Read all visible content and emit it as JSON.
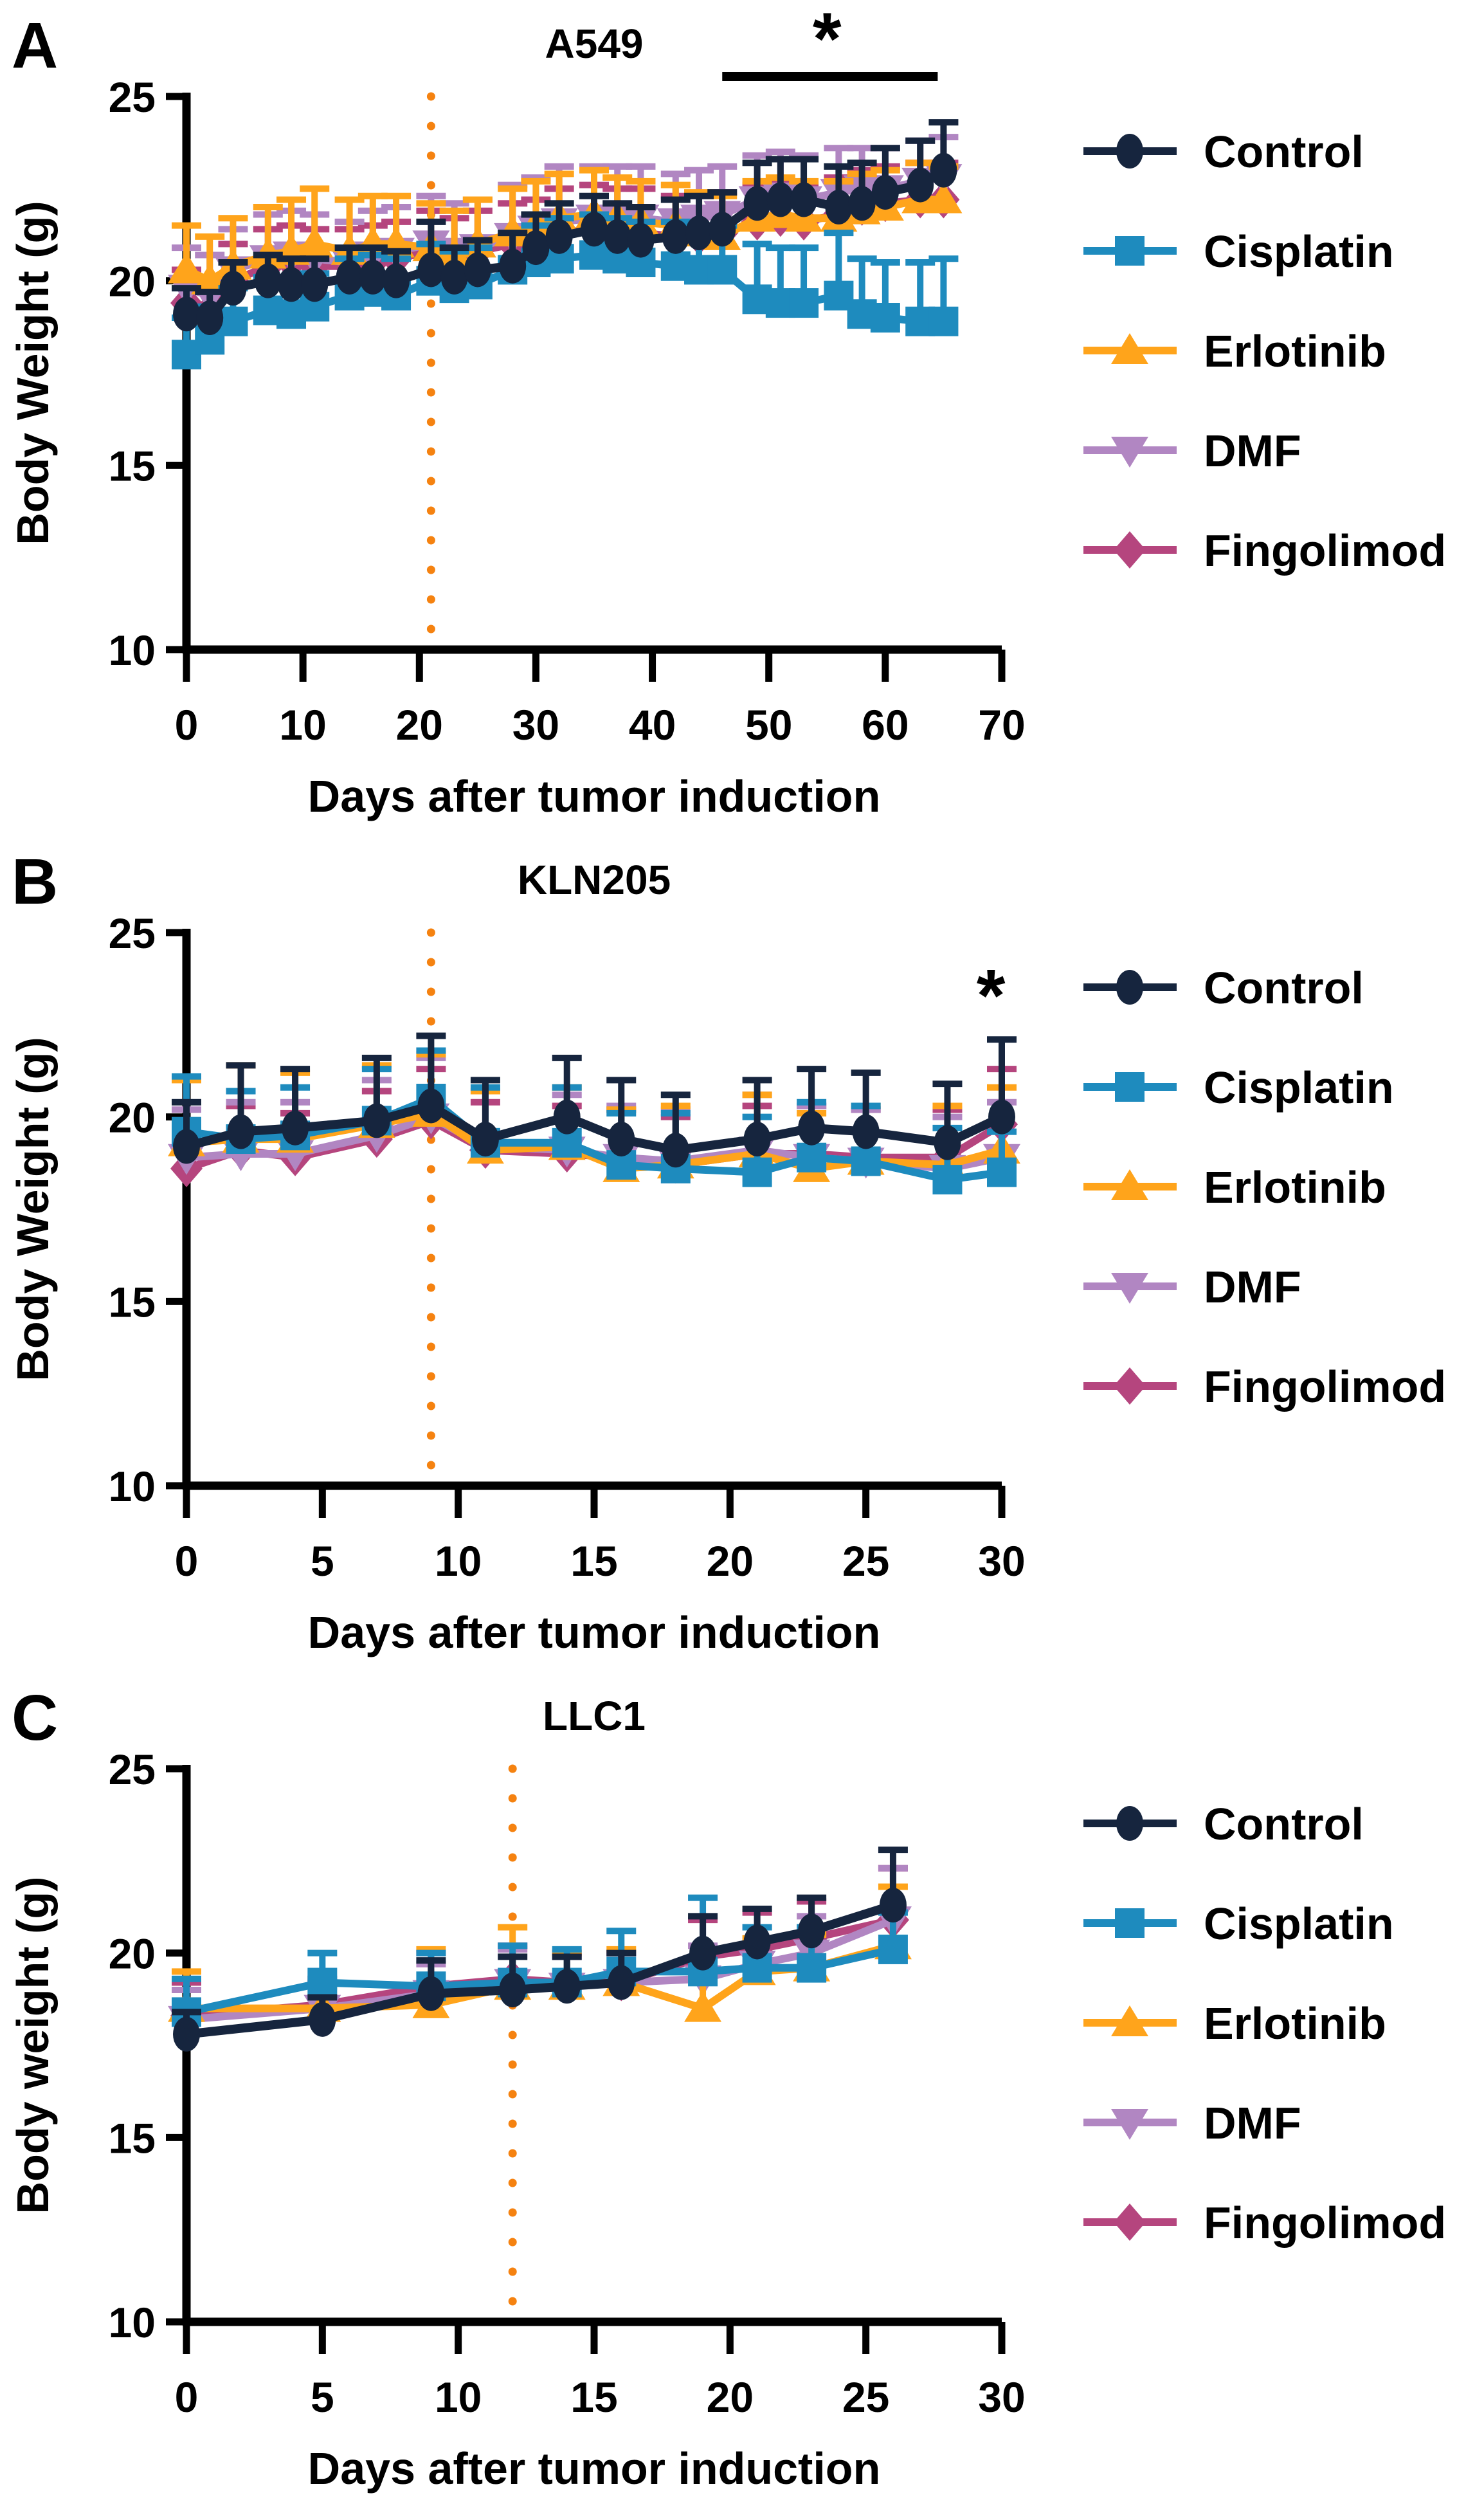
{
  "figure": {
    "background": "#ffffff"
  },
  "colors": {
    "control": "#16253e",
    "cisplatin": "#1e8bbe",
    "erlotinib": "#ffa41b",
    "dmf": "#b186c2",
    "fingolimod": "#b5457e",
    "treatment_line": "#f58210",
    "axis": "#000000",
    "sig_bar": "#000000"
  },
  "legend": {
    "position": "right",
    "entries": [
      {
        "label": "Control",
        "key": "control",
        "marker": "circle"
      },
      {
        "label": "Cisplatin",
        "key": "cisplatin",
        "marker": "square"
      },
      {
        "label": "Erlotinib",
        "key": "erlotinib",
        "marker": "triangle-up"
      },
      {
        "label": "DMF",
        "key": "dmf",
        "marker": "triangle-down"
      },
      {
        "label": "Fingolimod",
        "key": "fingolimod",
        "marker": "diamond"
      }
    ]
  },
  "chart_data": [
    {
      "type": "line",
      "panel_letter": "A",
      "title": "A549",
      "xlabel": "Days after tumor induction",
      "ylabel": "Body Weight (g)",
      "xlim": [
        0,
        70
      ],
      "xticks": [
        0,
        10,
        20,
        30,
        40,
        50,
        60,
        70
      ],
      "ylim": [
        10,
        25
      ],
      "yticks": [
        10,
        15,
        20,
        25
      ],
      "grid": false,
      "treatment_day_line": 21,
      "significance": {
        "type": "bar-asterisk",
        "from_day": 46,
        "to_day": 64.5,
        "asterisk_day": 55,
        "label": "*",
        "color_key": "cisplatin"
      },
      "x": [
        0,
        2,
        4,
        7,
        9,
        11,
        14,
        16,
        18,
        21,
        23,
        25,
        28,
        30,
        32,
        35,
        37,
        39,
        42,
        44,
        46,
        49,
        51,
        53,
        56,
        58,
        60,
        63,
        65
      ],
      "series": [
        {
          "name": "Control",
          "key": "control",
          "marker": "circle",
          "mean": [
            19.1,
            19.0,
            19.8,
            20.0,
            19.9,
            19.9,
            20.1,
            20.1,
            20.0,
            20.3,
            20.1,
            20.3,
            20.4,
            20.9,
            21.2,
            21.4,
            21.2,
            21.1,
            21.2,
            21.3,
            21.4,
            22.1,
            22.2,
            22.2,
            22.0,
            22.1,
            22.4,
            22.6,
            23.0
          ],
          "sd_upper": [
            0.7,
            0.7,
            0.7,
            0.7,
            0.7,
            0.7,
            0.8,
            0.8,
            0.8,
            1.3,
            0.8,
            0.8,
            0.9,
            0.9,
            0.9,
            0.9,
            0.9,
            0.9,
            1.0,
            1.0,
            1.0,
            1.1,
            1.1,
            1.1,
            1.1,
            1.1,
            1.2,
            1.2,
            1.3
          ]
        },
        {
          "name": "Cisplatin",
          "key": "cisplatin",
          "marker": "square",
          "mean": [
            18.0,
            18.4,
            18.9,
            19.2,
            19.1,
            19.3,
            19.6,
            19.7,
            19.6,
            20.0,
            19.8,
            19.9,
            20.3,
            20.5,
            20.6,
            20.7,
            20.6,
            20.5,
            20.4,
            20.3,
            20.3,
            19.5,
            19.4,
            19.4,
            19.6,
            19.1,
            19.0,
            18.9,
            18.9
          ],
          "sd_upper": [
            1.0,
            0.9,
            0.9,
            0.9,
            0.9,
            0.9,
            1.0,
            1.0,
            1.0,
            1.0,
            1.0,
            1.0,
            1.0,
            1.0,
            1.1,
            1.1,
            1.1,
            1.1,
            1.2,
            1.2,
            1.2,
            1.5,
            1.5,
            1.5,
            1.7,
            1.5,
            1.5,
            1.6,
            1.7
          ]
        },
        {
          "name": "Erlotinib",
          "key": "erlotinib",
          "marker": "triangle-up",
          "mean": [
            20.3,
            20.0,
            20.4,
            20.7,
            20.8,
            21.0,
            20.8,
            21.0,
            21.0,
            20.9,
            20.7,
            21.0,
            21.3,
            21.5,
            21.7,
            21.8,
            21.7,
            21.6,
            21.5,
            21.3,
            21.2,
            21.7,
            21.8,
            21.7,
            21.7,
            21.9,
            22.0,
            22.2,
            22.2
          ],
          "sd_upper": [
            1.2,
            1.2,
            1.3,
            1.3,
            1.4,
            1.5,
            1.4,
            1.3,
            1.3,
            1.2,
            1.2,
            1.2,
            1.2,
            1.2,
            1.2,
            1.2,
            1.1,
            1.1,
            1.1,
            1.1,
            1.1,
            1.0,
            1.0,
            1.0,
            1.0,
            1.0,
            1.0,
            1.0,
            0.9
          ]
        },
        {
          "name": "DMF",
          "key": "dmf",
          "marker": "triangle-down",
          "mean": [
            19.8,
            19.6,
            20.3,
            20.6,
            20.7,
            20.6,
            20.5,
            20.7,
            20.8,
            21.0,
            20.8,
            20.9,
            21.2,
            21.4,
            21.6,
            21.7,
            21.7,
            21.7,
            21.6,
            21.7,
            21.8,
            22.2,
            22.3,
            22.2,
            22.4,
            22.5,
            22.5,
            22.7,
            22.8
          ],
          "sd_upper": [
            1.1,
            1.1,
            1.1,
            1.2,
            1.2,
            1.2,
            1.1,
            1.2,
            1.2,
            1.3,
            1.3,
            1.3,
            1.4,
            1.4,
            1.5,
            1.4,
            1.4,
            1.4,
            1.3,
            1.3,
            1.3,
            1.2,
            1.2,
            1.2,
            1.2,
            1.1,
            1.1,
            1.1,
            1.1
          ]
        },
        {
          "name": "Fingolimod",
          "key": "fingolimod",
          "marker": "diamond",
          "mean": [
            19.4,
            19.2,
            20.0,
            20.4,
            20.5,
            20.4,
            20.4,
            20.5,
            20.6,
            20.8,
            20.6,
            20.8,
            21.0,
            21.1,
            21.3,
            21.4,
            21.3,
            21.3,
            21.2,
            21.2,
            21.3,
            21.6,
            21.7,
            21.6,
            21.8,
            22.0,
            22.1,
            22.2,
            22.2
          ],
          "sd_upper": [
            0.9,
            0.9,
            1.0,
            1.0,
            1.0,
            1.0,
            1.0,
            1.0,
            1.0,
            1.1,
            1.1,
            1.1,
            1.1,
            1.1,
            1.2,
            1.2,
            1.2,
            1.2,
            1.1,
            1.1,
            1.1,
            1.0,
            1.0,
            1.0,
            1.0,
            1.0,
            1.0,
            1.0,
            1.0
          ]
        }
      ]
    },
    {
      "type": "line",
      "panel_letter": "B",
      "title": "KLN205",
      "xlabel": "Days after tumor induction",
      "ylabel": "Body Weight (g)",
      "xlim": [
        0,
        30
      ],
      "xticks": [
        0,
        5,
        10,
        15,
        20,
        25,
        30
      ],
      "ylim": [
        10,
        25
      ],
      "yticks": [
        10,
        15,
        20,
        25
      ],
      "grid": false,
      "treatment_day_line": 9,
      "significance": {
        "type": "asterisk",
        "day": 29.6,
        "value": 22.6,
        "label": "*",
        "color_key": "cisplatin"
      },
      "x": [
        0,
        2,
        4,
        7,
        9,
        11,
        14,
        16,
        18,
        21,
        23,
        25,
        28,
        30
      ],
      "series": [
        {
          "name": "Control",
          "key": "control",
          "marker": "circle",
          "mean": [
            19.2,
            19.6,
            19.7,
            19.9,
            20.3,
            19.4,
            20.0,
            19.4,
            19.1,
            19.4,
            19.7,
            19.6,
            19.3,
            20.0
          ],
          "sd_upper": [
            1.2,
            1.8,
            1.6,
            1.7,
            1.9,
            1.6,
            1.6,
            1.6,
            1.5,
            1.6,
            1.6,
            1.6,
            1.6,
            2.1
          ]
        },
        {
          "name": "Cisplatin",
          "key": "cisplatin",
          "marker": "square",
          "mean": [
            19.6,
            19.4,
            19.5,
            19.9,
            20.5,
            19.3,
            19.3,
            18.7,
            18.6,
            18.5,
            18.9,
            18.8,
            18.3,
            18.5
          ],
          "sd_upper": [
            1.5,
            1.3,
            1.3,
            1.4,
            1.3,
            1.5,
            1.5,
            1.4,
            1.5,
            1.5,
            1.5,
            1.5,
            1.4,
            1.1
          ]
        },
        {
          "name": "Erlotinib",
          "key": "erlotinib",
          "marker": "triangle-up",
          "mean": [
            19.3,
            19.4,
            19.4,
            19.8,
            20.1,
            19.1,
            19.2,
            18.6,
            18.7,
            19.0,
            18.6,
            18.8,
            18.7,
            19.1
          ],
          "sd_upper": [
            1.7,
            2.0,
            1.8,
            1.6,
            1.6,
            1.6,
            1.6,
            1.6,
            1.6,
            1.6,
            1.5,
            1.5,
            1.6,
            1.7
          ]
        },
        {
          "name": "DMF",
          "key": "dmf",
          "marker": "triangle-down",
          "mean": [
            18.9,
            19.0,
            19.0,
            19.5,
            20.0,
            19.2,
            19.1,
            18.9,
            18.8,
            19.1,
            18.9,
            18.8,
            18.6,
            18.9
          ],
          "sd_upper": [
            1.3,
            1.4,
            1.4,
            1.5,
            1.6,
            1.5,
            1.5,
            1.4,
            1.4,
            1.5,
            1.4,
            1.4,
            1.4,
            1.5
          ]
        },
        {
          "name": "Fingolimod",
          "key": "fingolimod",
          "marker": "diamond",
          "mean": [
            18.6,
            19.1,
            18.9,
            19.4,
            19.9,
            19.1,
            19.0,
            18.9,
            18.7,
            19.0,
            19.0,
            18.9,
            18.9,
            19.8
          ],
          "sd_upper": [
            1.1,
            1.2,
            1.2,
            1.3,
            1.4,
            1.3,
            1.3,
            1.3,
            1.3,
            1.3,
            1.3,
            1.3,
            1.3,
            1.5
          ]
        }
      ]
    },
    {
      "type": "line",
      "panel_letter": "C",
      "title": "LLC1",
      "xlabel": "Days after tumor induction",
      "ylabel": "Body weight (g)",
      "xlim": [
        0,
        30
      ],
      "xticks": [
        0,
        5,
        10,
        15,
        20,
        25,
        30
      ],
      "ylim": [
        10,
        25
      ],
      "yticks": [
        10,
        15,
        20,
        25
      ],
      "grid": false,
      "treatment_day_line": 12,
      "significance": null,
      "x": [
        0,
        5,
        9,
        12,
        14,
        16,
        19,
        21,
        23,
        26
      ],
      "series": [
        {
          "name": "Control",
          "key": "control",
          "marker": "circle",
          "mean": [
            17.8,
            18.2,
            18.9,
            19.0,
            19.1,
            19.2,
            20.0,
            20.3,
            20.6,
            21.3
          ],
          "sd_upper": [
            0.6,
            0.6,
            0.9,
            0.9,
            0.8,
            0.8,
            1.0,
            0.9,
            0.9,
            1.5
          ]
        },
        {
          "name": "Cisplatin",
          "key": "cisplatin",
          "marker": "square",
          "mean": [
            18.4,
            19.2,
            19.1,
            19.2,
            19.2,
            19.5,
            19.5,
            19.6,
            19.6,
            20.1
          ],
          "sd_upper": [
            0.9,
            0.8,
            0.9,
            1.0,
            0.9,
            1.1,
            2.0,
            1.1,
            1.1,
            1.0
          ]
        },
        {
          "name": "Erlotinib",
          "key": "erlotinib",
          "marker": "triangle-up",
          "mean": [
            18.5,
            18.5,
            18.6,
            19.1,
            19.1,
            19.2,
            18.5,
            19.5,
            19.6,
            20.2
          ],
          "sd_upper": [
            1.0,
            0.6,
            1.5,
            1.6,
            0.9,
            0.9,
            0.9,
            0.9,
            0.9,
            1.6
          ]
        },
        {
          "name": "DMF",
          "key": "dmf",
          "marker": "triangle-down",
          "mean": [
            18.2,
            18.5,
            18.9,
            19.2,
            19.1,
            19.2,
            19.3,
            19.7,
            20.0,
            20.9
          ],
          "sd_upper": [
            0.8,
            0.7,
            0.8,
            0.9,
            0.8,
            0.8,
            0.9,
            1.0,
            1.0,
            1.4
          ]
        },
        {
          "name": "Fingolimod",
          "key": "fingolimod",
          "marker": "diamond",
          "mean": [
            18.3,
            18.6,
            19.1,
            19.3,
            19.2,
            19.2,
            19.9,
            20.1,
            20.4,
            20.9
          ],
          "sd_upper": [
            0.9,
            0.7,
            0.9,
            0.9,
            0.8,
            0.8,
            1.0,
            1.0,
            1.0,
            1.4
          ]
        }
      ]
    }
  ]
}
